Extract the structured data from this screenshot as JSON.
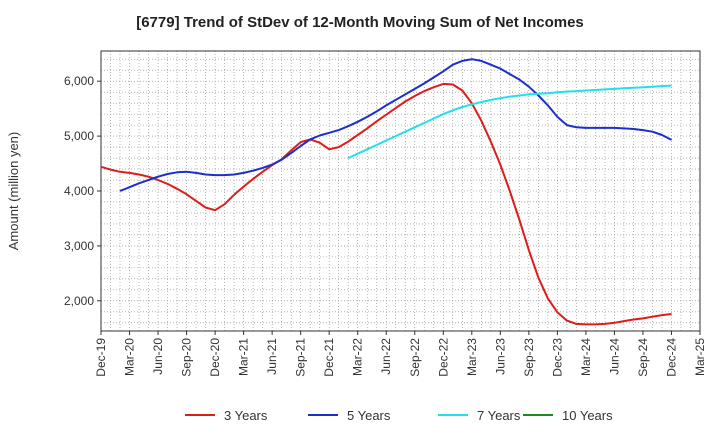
{
  "chart_data": {
    "type": "line",
    "title": "[6779]  Trend of StDev of 12-Month Moving Sum of Net Incomes",
    "ylabel": "Amount (million yen)",
    "xlabel": "",
    "ylim": [
      1450,
      6550
    ],
    "xlim": [
      "Dec-19",
      "Mar-25"
    ],
    "y_ticks": [
      "2,000",
      "3,000",
      "4,000",
      "5,000",
      "6,000"
    ],
    "y_tick_values": [
      2000,
      3000,
      4000,
      5000,
      6000
    ],
    "x_ticks": [
      "Dec-19",
      "Mar-20",
      "Jun-20",
      "Sep-20",
      "Dec-20",
      "Mar-21",
      "Jun-21",
      "Sep-21",
      "Dec-21",
      "Mar-22",
      "Jun-22",
      "Sep-22",
      "Dec-22",
      "Mar-23",
      "Jun-23",
      "Sep-23",
      "Dec-23",
      "Mar-24",
      "Jun-24",
      "Sep-24",
      "Dec-24",
      "Mar-25"
    ],
    "grid": true,
    "legend_position": "bottom",
    "series": [
      {
        "name": "3 Years",
        "color": "#dd1c1c",
        "x": [
          "Dec-19",
          "Jan-20",
          "Feb-20",
          "Mar-20",
          "Apr-20",
          "May-20",
          "Jun-20",
          "Jul-20",
          "Aug-20",
          "Sep-20",
          "Oct-20",
          "Nov-20",
          "Dec-20",
          "Jan-21",
          "Feb-21",
          "Mar-21",
          "Apr-21",
          "May-21",
          "Jun-21",
          "Jul-21",
          "Aug-21",
          "Sep-21",
          "Oct-21",
          "Nov-21",
          "Dec-21",
          "Jan-22",
          "Feb-22",
          "Mar-22",
          "Apr-22",
          "May-22",
          "Jun-22",
          "Jul-22",
          "Aug-22",
          "Sep-22",
          "Oct-22",
          "Nov-22",
          "Dec-22",
          "Jan-23",
          "Feb-23",
          "Mar-23",
          "Apr-23",
          "May-23",
          "Jun-23",
          "Jul-23",
          "Aug-23",
          "Sep-23",
          "Oct-23",
          "Nov-23",
          "Dec-23",
          "Jan-24",
          "Feb-24",
          "Mar-24",
          "Apr-24",
          "May-24",
          "Jun-24",
          "Jul-24",
          "Aug-24",
          "Sep-24",
          "Oct-24",
          "Nov-24",
          "Dec-24"
        ],
        "values": [
          4440,
          4390,
          4350,
          4330,
          4300,
          4260,
          4200,
          4130,
          4040,
          3940,
          3820,
          3700,
          3650,
          3760,
          3930,
          4080,
          4220,
          4350,
          4470,
          4580,
          4740,
          4890,
          4940,
          4880,
          4760,
          4800,
          4900,
          5020,
          5140,
          5270,
          5390,
          5510,
          5630,
          5730,
          5820,
          5890,
          5950,
          5940,
          5830,
          5600,
          5280,
          4900,
          4480,
          4000,
          3480,
          2920,
          2420,
          2040,
          1790,
          1640,
          1580,
          1570,
          1570,
          1580,
          1600,
          1630,
          1660,
          1680,
          1710,
          1740,
          1760
        ]
      },
      {
        "name": "5 Years",
        "color": "#1c2fcc",
        "x": [
          "Feb-20",
          "Mar-20",
          "Apr-20",
          "May-20",
          "Jun-20",
          "Jul-20",
          "Aug-20",
          "Sep-20",
          "Oct-20",
          "Nov-20",
          "Dec-20",
          "Jan-21",
          "Feb-21",
          "Mar-21",
          "Apr-21",
          "May-21",
          "Jun-21",
          "Jul-21",
          "Aug-21",
          "Sep-21",
          "Oct-21",
          "Nov-21",
          "Dec-21",
          "Jan-22",
          "Feb-22",
          "Mar-22",
          "Apr-22",
          "May-22",
          "Jun-22",
          "Jul-22",
          "Aug-22",
          "Sep-22",
          "Oct-22",
          "Nov-22",
          "Dec-22",
          "Jan-23",
          "Feb-23",
          "Mar-23",
          "Apr-23",
          "May-23",
          "Jun-23",
          "Jul-23",
          "Aug-23",
          "Sep-23",
          "Oct-23",
          "Nov-23",
          "Dec-23",
          "Jan-24",
          "Feb-24",
          "Mar-24",
          "Apr-24",
          "May-24",
          "Jun-24",
          "Jul-24",
          "Aug-24",
          "Sep-24",
          "Oct-24",
          "Nov-24",
          "Dec-24"
        ],
        "values": [
          4000,
          4070,
          4140,
          4200,
          4260,
          4310,
          4340,
          4350,
          4330,
          4300,
          4290,
          4290,
          4300,
          4330,
          4370,
          4420,
          4480,
          4570,
          4690,
          4820,
          4940,
          5010,
          5060,
          5110,
          5180,
          5260,
          5350,
          5450,
          5560,
          5660,
          5760,
          5860,
          5960,
          6070,
          6180,
          6300,
          6370,
          6400,
          6370,
          6300,
          6230,
          6130,
          6030,
          5900,
          5740,
          5560,
          5350,
          5200,
          5160,
          5150,
          5150,
          5150,
          5150,
          5140,
          5130,
          5110,
          5080,
          5020,
          4930
        ]
      },
      {
        "name": "7 Years",
        "color": "#22e0e8",
        "x": [
          "Feb-22",
          "Mar-22",
          "Apr-22",
          "May-22",
          "Jun-22",
          "Jul-22",
          "Aug-22",
          "Sep-22",
          "Oct-22",
          "Nov-22",
          "Dec-22",
          "Jan-23",
          "Feb-23",
          "Mar-23",
          "Apr-23",
          "May-23",
          "Jun-23",
          "Jul-23",
          "Aug-23",
          "Sep-23",
          "Oct-23",
          "Nov-23",
          "Dec-23",
          "Jan-24",
          "Feb-24",
          "Mar-24",
          "Apr-24",
          "May-24",
          "Jun-24",
          "Jul-24",
          "Aug-24",
          "Sep-24",
          "Oct-24",
          "Nov-24",
          "Dec-24"
        ],
        "values": [
          4600,
          4680,
          4760,
          4840,
          4920,
          5000,
          5080,
          5160,
          5240,
          5320,
          5400,
          5470,
          5530,
          5580,
          5620,
          5660,
          5690,
          5720,
          5740,
          5760,
          5770,
          5780,
          5800,
          5810,
          5820,
          5830,
          5840,
          5850,
          5860,
          5870,
          5880,
          5890,
          5900,
          5910,
          5920
        ]
      },
      {
        "name": "10 Years",
        "color": "#1f8a1f",
        "x": [],
        "values": []
      }
    ]
  }
}
